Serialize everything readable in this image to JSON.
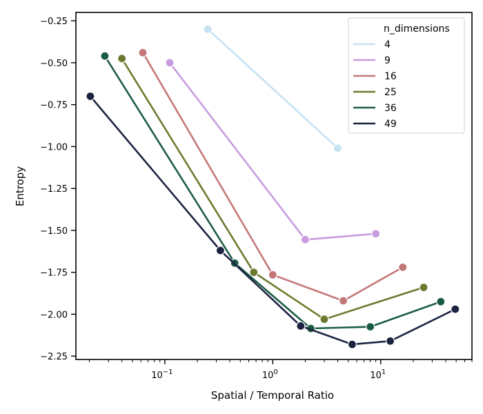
{
  "chart_data": {
    "type": "line",
    "title": "",
    "xlabel": "Spatial / Temporal Ratio",
    "ylabel": "Entropy",
    "xscale": "log",
    "xlim": [
      0.015,
      70
    ],
    "ylim": [
      -2.27,
      -0.2
    ],
    "x_ticks": [
      {
        "value": 0.1,
        "base": "10",
        "exp": "−1"
      },
      {
        "value": 1,
        "base": "10",
        "exp": "0"
      },
      {
        "value": 10,
        "base": "10",
        "exp": "1"
      }
    ],
    "y_ticks": [
      {
        "value": -0.25,
        "label": "−0.25"
      },
      {
        "value": -0.5,
        "label": "−0.50"
      },
      {
        "value": -0.75,
        "label": "−0.75"
      },
      {
        "value": -1.0,
        "label": "−1.00"
      },
      {
        "value": -1.25,
        "label": "−1.25"
      },
      {
        "value": -1.5,
        "label": "−1.50"
      },
      {
        "value": -1.75,
        "label": "−1.75"
      },
      {
        "value": -2.0,
        "label": "−2.00"
      },
      {
        "value": -2.25,
        "label": "−2.25"
      }
    ],
    "grid": false,
    "legend": {
      "title": "n_dimensions",
      "placement": "top-right"
    },
    "series": [
      {
        "name": "4",
        "color": "#c6e2f2",
        "points": [
          [
            0.25,
            -0.3
          ],
          [
            4.0,
            -1.01
          ]
        ]
      },
      {
        "name": "9",
        "color": "#c99be0",
        "points": [
          [
            0.111,
            -0.5
          ],
          [
            2.0,
            -1.555
          ],
          [
            9.0,
            -1.52
          ]
        ]
      },
      {
        "name": "16",
        "color": "#c47778",
        "points": [
          [
            0.0625,
            -0.44
          ],
          [
            1.0,
            -1.765
          ],
          [
            4.5,
            -1.92
          ],
          [
            16.0,
            -1.72
          ]
        ]
      },
      {
        "name": "25",
        "color": "#6b7a2f",
        "points": [
          [
            0.04,
            -0.475
          ],
          [
            0.667,
            -1.75
          ],
          [
            3.0,
            -2.03
          ],
          [
            25.0,
            -1.84
          ]
        ]
      },
      {
        "name": "36",
        "color": "#1b5b44",
        "points": [
          [
            0.0278,
            -0.46
          ],
          [
            0.444,
            -1.695
          ],
          [
            2.25,
            -2.085
          ],
          [
            8.0,
            -2.075
          ],
          [
            36.0,
            -1.925
          ]
        ]
      },
      {
        "name": "49",
        "color": "#1c2340",
        "points": [
          [
            0.0204,
            -0.7
          ],
          [
            0.327,
            -1.62
          ],
          [
            1.815,
            -2.07
          ],
          [
            5.44,
            -2.18
          ],
          [
            12.25,
            -2.16
          ],
          [
            49.0,
            -1.97
          ]
        ]
      }
    ]
  }
}
